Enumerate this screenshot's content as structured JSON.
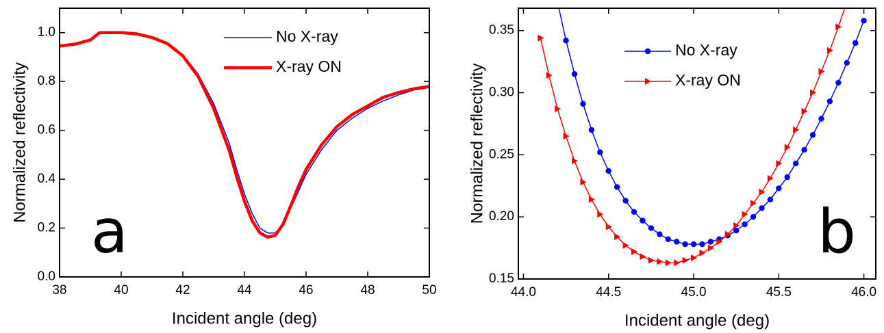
{
  "chart_data": [
    {
      "type": "line",
      "xlabel": "Incident angle (deg)",
      "ylabel": "Normalized reflectivity",
      "annotation": "a",
      "x": [
        38,
        38.5,
        39,
        39.2,
        39.3,
        40,
        40.5,
        41,
        41.5,
        42,
        42.5,
        43,
        43.5,
        43.75,
        44,
        44.25,
        44.5,
        44.75,
        45,
        45.25,
        45.5,
        45.75,
        46,
        46.5,
        47,
        47.5,
        48,
        48.5,
        49,
        49.5,
        50
      ],
      "series": [
        {
          "name": "No X-ray",
          "color": "#0000ff",
          "values": [
            0.945,
            0.953,
            0.97,
            0.99,
            1.0,
            1.0,
            0.995,
            0.98,
            0.955,
            0.91,
            0.83,
            0.71,
            0.55,
            0.44,
            0.34,
            0.26,
            0.2,
            0.18,
            0.18,
            0.215,
            0.28,
            0.35,
            0.42,
            0.52,
            0.6,
            0.65,
            0.69,
            0.72,
            0.745,
            0.765,
            0.775
          ]
        },
        {
          "name": "X-ray ON",
          "color": "#ff0000",
          "values": [
            0.945,
            0.953,
            0.97,
            0.99,
            1.0,
            1.0,
            0.995,
            0.98,
            0.955,
            0.905,
            0.82,
            0.69,
            0.52,
            0.41,
            0.31,
            0.23,
            0.18,
            0.163,
            0.17,
            0.215,
            0.29,
            0.37,
            0.44,
            0.54,
            0.615,
            0.665,
            0.7,
            0.735,
            0.755,
            0.77,
            0.78
          ]
        }
      ],
      "xlim": [
        38,
        50
      ],
      "xticks": [
        38,
        40,
        42,
        44,
        46,
        48,
        50
      ],
      "ylim": [
        0,
        1.1
      ],
      "yticks": [
        {
          "value": 0,
          "label": "0.0"
        },
        0.2,
        0.4,
        0.6,
        0.8,
        {
          "value": 1,
          "label": "1.0"
        }
      ],
      "legend": "upper right"
    },
    {
      "type": "line",
      "xlabel": "Incident angle (deg)",
      "ylabel": "Normalized reflectivity",
      "annotation": "b",
      "series": [
        {
          "name": "No X-ray",
          "color": "#0000ff",
          "marker": "circle",
          "x": [
            44.2,
            44.25,
            44.3,
            44.35,
            44.4,
            44.45,
            44.5,
            44.55,
            44.6,
            44.65,
            44.7,
            44.75,
            44.8,
            44.85,
            44.9,
            44.95,
            45.0,
            45.05,
            45.1,
            45.15,
            45.2,
            45.25,
            45.3,
            45.35,
            45.4,
            45.45,
            45.5,
            45.55,
            45.6,
            45.65,
            45.7,
            45.75,
            45.8,
            45.85,
            45.9,
            45.95,
            46.0
          ],
          "values": [
            0.373,
            0.342,
            0.315,
            0.291,
            0.27,
            0.252,
            0.237,
            0.224,
            0.213,
            0.204,
            0.197,
            0.191,
            0.186,
            0.182,
            0.18,
            0.178,
            0.178,
            0.178,
            0.18,
            0.182,
            0.185,
            0.189,
            0.194,
            0.2,
            0.207,
            0.214,
            0.223,
            0.232,
            0.243,
            0.254,
            0.266,
            0.279,
            0.293,
            0.308,
            0.324,
            0.34,
            0.358
          ]
        },
        {
          "name": "X-ray ON",
          "color": "#ff0000",
          "marker": "triangle-right",
          "x": [
            44.1,
            44.15,
            44.2,
            44.25,
            44.3,
            44.35,
            44.4,
            44.45,
            44.5,
            44.55,
            44.6,
            44.65,
            44.7,
            44.75,
            44.8,
            44.85,
            44.9,
            44.95,
            45.0,
            45.05,
            45.1,
            45.15,
            45.2,
            45.25,
            45.3,
            45.35,
            45.4,
            45.45,
            45.5,
            45.55,
            45.6,
            45.65,
            45.7,
            45.75,
            45.8,
            45.85,
            45.9
          ],
          "values": [
            0.344,
            0.314,
            0.287,
            0.265,
            0.245,
            0.228,
            0.214,
            0.202,
            0.192,
            0.184,
            0.177,
            0.172,
            0.168,
            0.165,
            0.164,
            0.163,
            0.163,
            0.165,
            0.167,
            0.171,
            0.175,
            0.18,
            0.186,
            0.193,
            0.202,
            0.211,
            0.22,
            0.231,
            0.243,
            0.256,
            0.27,
            0.285,
            0.3,
            0.317,
            0.334,
            0.353,
            0.373
          ]
        }
      ],
      "xlim": [
        43.97,
        46.07
      ],
      "xticks": [
        {
          "value": 44,
          "label": "44.0"
        },
        44.5,
        {
          "value": 45,
          "label": "45.0"
        },
        45.5,
        {
          "value": 46,
          "label": "46.0"
        }
      ],
      "ylim": [
        0.15,
        0.368
      ],
      "yticks": [
        0.15,
        {
          "value": 0.2,
          "label": "0.20"
        },
        0.25,
        {
          "value": 0.3,
          "label": "0.30"
        },
        0.35
      ],
      "legend": "upper center"
    }
  ]
}
